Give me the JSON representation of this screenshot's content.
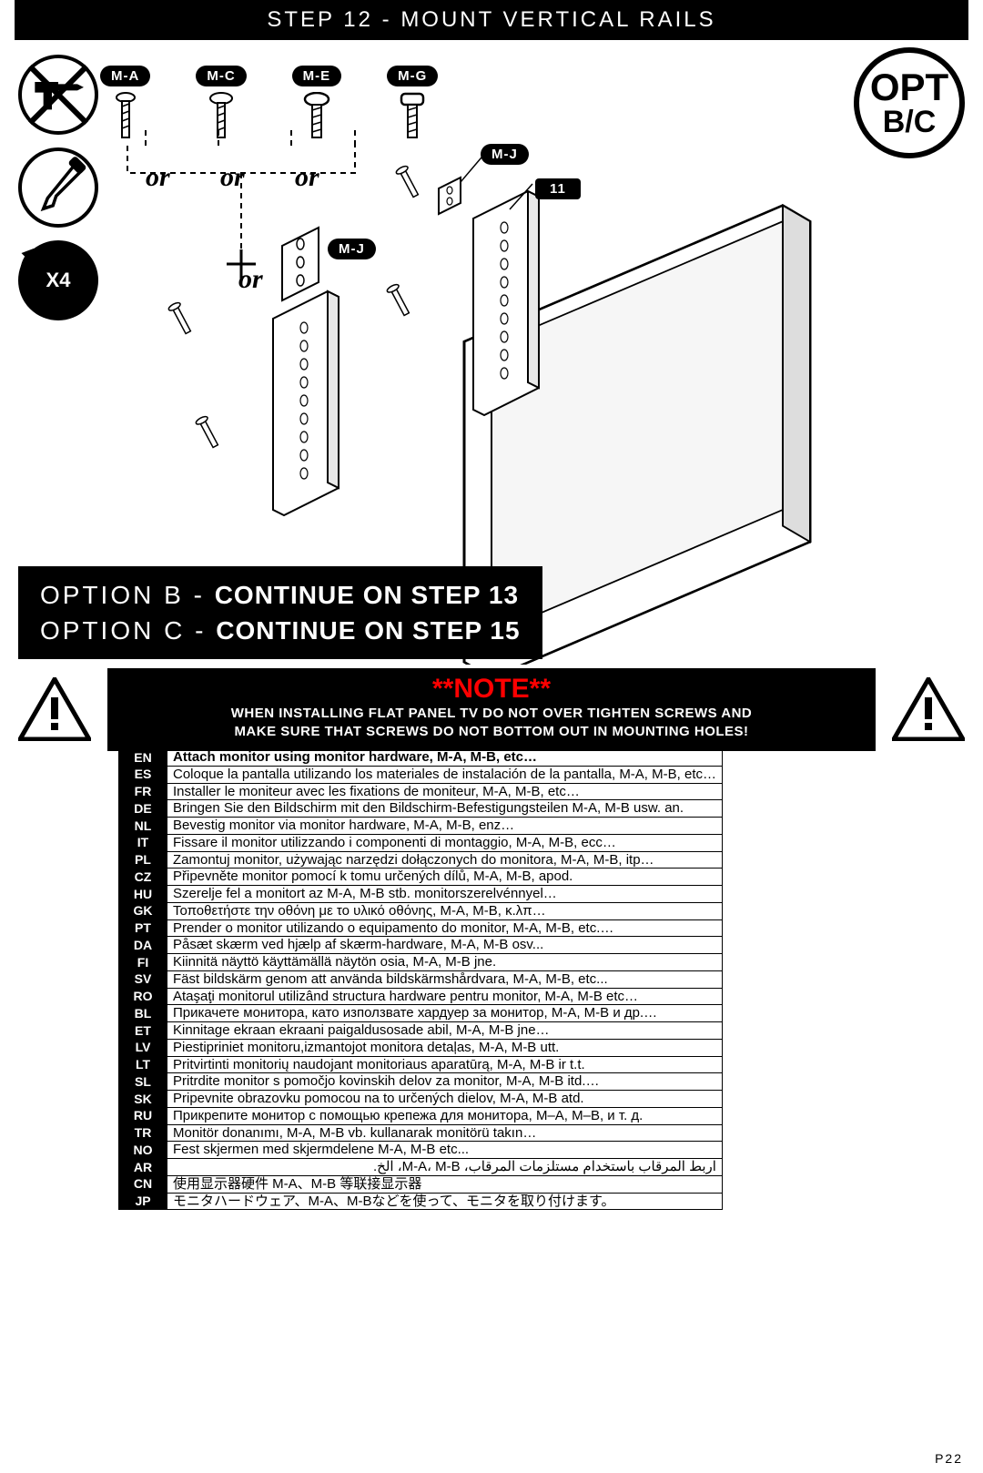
{
  "header_title": "STEP 12 - MOUNT VERTICAL RAILS",
  "opt_badge": {
    "line1": "OPT",
    "line2": "B/C"
  },
  "rotate_label": "X4",
  "screws": [
    {
      "label": "M-A"
    },
    {
      "label": "M-C"
    },
    {
      "label": "M-E"
    },
    {
      "label": "M-G"
    }
  ],
  "or_label": "or",
  "callouts": {
    "mj1": "M-J",
    "mj2": "M-J",
    "eleven": "11"
  },
  "option_lines": [
    {
      "prefix": "OPTION B - ",
      "bold": "CONTINUE ON STEP 13"
    },
    {
      "prefix": "OPTION C - ",
      "bold": "CONTINUE ON STEP 15"
    }
  ],
  "note": {
    "title": "**NOTE**",
    "body": "WHEN INSTALLING FLAT PANEL TV DO NOT OVER TIGHTEN SCREWS AND\nMAKE SURE THAT SCREWS DO NOT BOTTOM OUT IN MOUNTING HOLES!"
  },
  "languages": [
    {
      "code": "EN",
      "text": "Attach monitor using monitor hardware, M-A, M-B, etc…"
    },
    {
      "code": "ES",
      "text": "Coloque la pantalla utilizando los materiales de instalación de la pantalla, M-A, M-B, etc…"
    },
    {
      "code": "FR",
      "text": "Installer le moniteur avec les fixations de moniteur, M-A, M-B, etc…"
    },
    {
      "code": "DE",
      "text": "Bringen Sie den Bildschirm mit den Bildschirm-Befestigungsteilen M-A, M-B usw. an."
    },
    {
      "code": "NL",
      "text": "Bevestig monitor via monitor hardware, M-A, M-B, enz…"
    },
    {
      "code": "IT",
      "text": "Fissare il monitor utilizzando i componenti di montaggio, M-A, M-B, ecc…"
    },
    {
      "code": "PL",
      "text": "Zamontuj monitor, używając narzędzi dołączonych do monitora, M-A, M-B, itp…"
    },
    {
      "code": "CZ",
      "text": "Připevněte monitor pomocí k tomu určených dílů, M-A, M-B, apod."
    },
    {
      "code": "HU",
      "text": "Szerelje fel a monitort az M-A, M-B stb. monitorszerelvénnyel…"
    },
    {
      "code": "GK",
      "text": "Τοποθετήστε την οθόνη με το υλικό οθόνης, M-A, M-B, κ.λπ…"
    },
    {
      "code": "PT",
      "text": "Prender o monitor utilizando o equipamento do monitor, M-A, M-B, etc.…"
    },
    {
      "code": "DA",
      "text": "Påsæt skærm ved hjælp af skærm-hardware, M-A, M-B osv..."
    },
    {
      "code": "FI",
      "text": "Kiinnitä näyttö käyttämällä näytön osia, M-A, M-B jne."
    },
    {
      "code": "SV",
      "text": "Fäst bildskärm genom att använda bildskärmshårdvara, M-A, M-B, etc..."
    },
    {
      "code": "RO",
      "text": "Ataşaţi monitorul utilizând structura hardware pentru monitor, M-A, M-B etc…"
    },
    {
      "code": "BL",
      "text": "Прикачете монитора, като използвате хардуер за монитор, M-A, M-B и др.…"
    },
    {
      "code": "ET",
      "text": "Kinnitage ekraan ekraani paigaldusosade abil, M-A, M-B jne…"
    },
    {
      "code": "LV",
      "text": "Piestipriniet monitoru,izmantojot monitora detaļas, M-A, M-B utt."
    },
    {
      "code": "LT",
      "text": "Pritvirtinti monitorių naudojant monitoriaus aparatūrą, M-A, M-B ir t.t."
    },
    {
      "code": "SL",
      "text": "Pritrdite monitor s pomočjo kovinskih delov za monitor, M-A, M-B itd.…"
    },
    {
      "code": "SK",
      "text": "Pripevnite obrazovku pomocou na to určených dielov, M-A, M-B atd."
    },
    {
      "code": "RU",
      "text": "Прикрепите монитор с помощью крепежа для монитора, M–A, M–B, и т. д."
    },
    {
      "code": "TR",
      "text": "Monitör donanımı, M-A, M-B vb. kullanarak monitörü takın…"
    },
    {
      "code": "NO",
      "text": "Fest skjermen med skjermdelene M-A, M-B etc..."
    },
    {
      "code": "AR",
      "text": "اربط المرقاب باستخدام مستلزمات المرقاب، M-A، M-B، الخ."
    },
    {
      "code": "CN",
      "text": "使用显示器硬件 M-A、M-B 等联接显示器"
    },
    {
      "code": "JP",
      "text": "モニタハードウェア、M-A、M-Bなどを使って、モニタを取り付けます。"
    }
  ],
  "page_number": "P22"
}
